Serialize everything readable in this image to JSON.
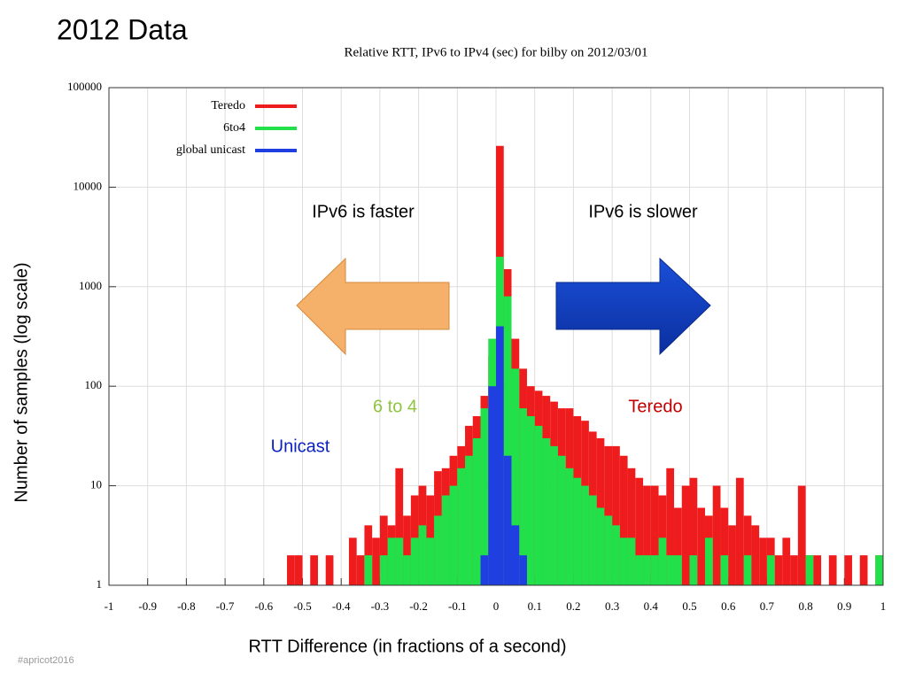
{
  "slide": {
    "title": "2012 Data",
    "footer": "#apricot2016"
  },
  "chart_data": {
    "type": "histogram",
    "title": "Relative RTT, IPv6 to IPv4 (sec) for bilby on 2012/03/01",
    "x_label": "RTT Difference (in fractions of a second)",
    "y_label": "Number of samples (log scale)",
    "y_scale": "log",
    "grid": true,
    "legend": "top-left",
    "xlim": [
      -1,
      1
    ],
    "ylim": [
      1,
      100000
    ],
    "xticks": [
      -1,
      -0.9,
      -0.8,
      -0.7,
      -0.6,
      -0.5,
      -0.4,
      -0.3,
      -0.2,
      -0.1,
      0,
      0.1,
      0.2,
      0.3,
      0.4,
      0.5,
      0.6,
      0.7,
      0.8,
      0.9,
      1
    ],
    "yticks": [
      1,
      10,
      100,
      1000,
      10000,
      100000
    ],
    "bins": [
      -0.56,
      -0.54,
      -0.52,
      -0.5,
      -0.48,
      -0.46,
      -0.44,
      -0.42,
      -0.4,
      -0.38,
      -0.36,
      -0.34,
      -0.32,
      -0.3,
      -0.28,
      -0.26,
      -0.24,
      -0.22,
      -0.2,
      -0.18,
      -0.16,
      -0.14,
      -0.12,
      -0.1,
      -0.08,
      -0.06,
      -0.04,
      -0.02,
      0,
      0.02,
      0.04,
      0.06,
      0.08,
      0.1,
      0.12,
      0.14,
      0.16,
      0.18,
      0.2,
      0.22,
      0.24,
      0.26,
      0.28,
      0.3,
      0.32,
      0.34,
      0.36,
      0.38,
      0.4,
      0.42,
      0.44,
      0.46,
      0.48,
      0.5,
      0.52,
      0.54,
      0.56,
      0.58,
      0.6,
      0.62,
      0.64,
      0.66,
      0.68,
      0.7,
      0.72,
      0.74,
      0.76,
      0.78,
      0.8,
      0.82,
      0.84,
      0.86,
      0.88,
      0.9,
      0.92,
      0.94,
      0.96,
      0.98,
      1
    ],
    "series": [
      {
        "name": "Teredo",
        "color": "#ee1c1c",
        "values": [
          0,
          2,
          2,
          0,
          2,
          1,
          2,
          0,
          1,
          3,
          2,
          4,
          3,
          5,
          4,
          15,
          5,
          8,
          10,
          8,
          14,
          15,
          20,
          25,
          40,
          50,
          80,
          200,
          26000,
          1500,
          300,
          150,
          100,
          90,
          80,
          70,
          60,
          60,
          50,
          45,
          35,
          30,
          25,
          25,
          20,
          15,
          12,
          10,
          10,
          8,
          15,
          6,
          10,
          12,
          6,
          5,
          10,
          6,
          4,
          12,
          5,
          4,
          3,
          3,
          2,
          3,
          2,
          10,
          2,
          2,
          1,
          2,
          1,
          2,
          1,
          2,
          1,
          2
        ]
      },
      {
        "name": "6to4",
        "color": "#22e04a",
        "values": [
          0,
          0,
          0,
          0,
          0,
          0,
          0,
          0,
          0,
          0,
          0,
          2,
          1,
          2,
          3,
          3,
          2,
          3,
          4,
          3,
          5,
          8,
          10,
          15,
          20,
          30,
          60,
          300,
          2000,
          800,
          150,
          60,
          50,
          40,
          30,
          25,
          20,
          15,
          12,
          10,
          8,
          6,
          5,
          4,
          3,
          3,
          2,
          2,
          2,
          3,
          2,
          2,
          1,
          2,
          1,
          3,
          1,
          2,
          1,
          1,
          2,
          1,
          1,
          2,
          1,
          0,
          1,
          1,
          2,
          1,
          0,
          1,
          0,
          1,
          0,
          0,
          1,
          2
        ]
      },
      {
        "name": "global unicast",
        "color": "#1f3fe0",
        "values": [
          0,
          0,
          0,
          0,
          0,
          0,
          0,
          0,
          0,
          0,
          0,
          0,
          0,
          0,
          0,
          0,
          0,
          0,
          0,
          0,
          0,
          0,
          0,
          0,
          0,
          0,
          2,
          100,
          400,
          20,
          4,
          2,
          0,
          0,
          0,
          0,
          0,
          0,
          0,
          0,
          0,
          0,
          0,
          0,
          0,
          0,
          0,
          0,
          0,
          0,
          0,
          0,
          0,
          0,
          0,
          0,
          0,
          0,
          0,
          0,
          0,
          0,
          0,
          0,
          0,
          0,
          0,
          0,
          0,
          0,
          0,
          0,
          0,
          0,
          0,
          0,
          0,
          0
        ]
      }
    ],
    "annotations": [
      {
        "text": "IPv6 is faster",
        "color": "#000000"
      },
      {
        "text": "IPv6 is slower",
        "color": "#000000"
      },
      {
        "text": "6 to 4",
        "color": "#8fc43f"
      },
      {
        "text": "Teredo",
        "color": "#c00000"
      },
      {
        "text": "Unicast",
        "color": "#0b22c0"
      }
    ]
  }
}
